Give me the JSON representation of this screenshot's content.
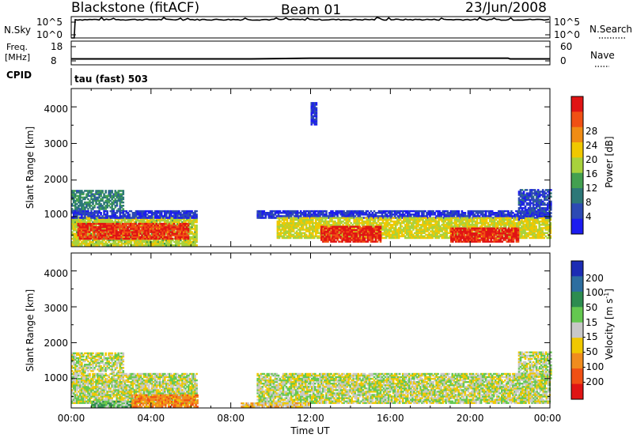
{
  "header": {
    "station": "Blackstone (fitACF)",
    "beam": "Beam 01",
    "date": "23/Jun/2008"
  },
  "summary_panels": {
    "nsky_label": "N.Sky",
    "nsky_ticks": [
      "10^5",
      "10^0"
    ],
    "nsearch_label": "N.Search",
    "nsearch_ticks": [
      "10^5",
      "10^0"
    ],
    "freq_label": "Freq.",
    "freq_unit": "[MHz]",
    "freq_ticks": [
      "18",
      "8"
    ],
    "nave_label": "Nave",
    "nave_ticks": [
      "60",
      "0"
    ],
    "cpid_label": "CPID",
    "cpid_value": "tau (fast) 503",
    "colors": {
      "trace": "#000000"
    }
  },
  "axes": {
    "x_ticks": [
      "00:00",
      "04:00",
      "08:00",
      "12:00",
      "16:00",
      "20:00",
      "00:00"
    ],
    "x_label": "Time UT",
    "y_ticks": [
      "1000",
      "2000",
      "3000",
      "4000"
    ],
    "y_label": "Slant Range [km]"
  },
  "colorbars": {
    "power": {
      "label": "Power [dB]",
      "ticks": [
        "4",
        "8",
        "12",
        "16",
        "20",
        "24",
        "28"
      ],
      "colors": [
        "#1c1cf0",
        "#2d4ab4",
        "#2d7878",
        "#43a050",
        "#a8d23c",
        "#f0c800",
        "#f08c14",
        "#f05014",
        "#e01414"
      ]
    },
    "velocity": {
      "label": "Velocity [m s",
      "label_sup": "-1",
      "label_end": "]",
      "ticks": [
        "200",
        "100",
        "50",
        "15",
        "-15",
        "-50",
        "-100",
        "-200"
      ],
      "colors": [
        "#1c2cb4",
        "#2d6ea0",
        "#2d8c50",
        "#64c850",
        "#c8c8c8",
        "#f0c800",
        "#f08c1e",
        "#f05014",
        "#e01414"
      ]
    }
  },
  "chart_data": [
    {
      "type": "line",
      "title": "N.Sky",
      "x_range_hours": [
        0,
        24
      ],
      "y_scale": "log",
      "ylim": [
        1,
        100000
      ],
      "approx_level": 20000,
      "series": [
        {
          "name": "N.Sky",
          "x": [
            0,
            0.15,
            0.2,
            12,
            24
          ],
          "y": [
            1,
            1,
            25000,
            20000,
            20000
          ]
        }
      ]
    },
    {
      "type": "line",
      "title": "Freq.",
      "x_range_hours": [
        0,
        24
      ],
      "ylim": [
        8,
        18
      ],
      "series": [
        {
          "name": "Freq.",
          "x": [
            0,
            6,
            9,
            12,
            15,
            18,
            21.9,
            22,
            24
          ],
          "y": [
            10.5,
            10.5,
            10.5,
            10.8,
            10.8,
            10.8,
            10.8,
            10.5,
            10.5
          ]
        }
      ]
    },
    {
      "type": "heatmap",
      "title": "Power [dB]",
      "x_range_hours": [
        0,
        24
      ],
      "ylim": [
        180,
        4500
      ],
      "value_range": [
        3,
        30
      ],
      "regions": [
        {
          "t": [
            0.0,
            2.6
          ],
          "r": [
            1100,
            1700
          ],
          "v": 11,
          "shape": "arc"
        },
        {
          "t": [
            0.0,
            6.3
          ],
          "r": [
            200,
            1000
          ],
          "v": 17
        },
        {
          "t": [
            0.3,
            5.9
          ],
          "r": [
            380,
            800
          ],
          "v": 27
        },
        {
          "t": [
            0.0,
            6.3
          ],
          "r": [
            950,
            1150
          ],
          "v": 6
        },
        {
          "t": [
            9.3,
            24.0
          ],
          "r": [
            950,
            1150
          ],
          "v": 6
        },
        {
          "t": [
            10.3,
            24.0
          ],
          "r": [
            400,
            950
          ],
          "v": 18
        },
        {
          "t": [
            12.5,
            15.5
          ],
          "r": [
            300,
            720
          ],
          "v": 28
        },
        {
          "t": [
            19.0,
            22.4
          ],
          "r": [
            300,
            700
          ],
          "v": 28
        },
        {
          "t": [
            22.4,
            24.0
          ],
          "r": [
            900,
            1750
          ],
          "v": 7,
          "shape": "arc"
        },
        {
          "t": [
            12.0,
            12.3
          ],
          "r": [
            3500,
            4100
          ],
          "v": 6
        }
      ]
    },
    {
      "type": "heatmap",
      "title": "Velocity",
      "x_range_hours": [
        0,
        24
      ],
      "ylim": [
        180,
        4500
      ],
      "value_range": [
        -250,
        250
      ],
      "regions": [
        {
          "t": [
            0.0,
            2.6
          ],
          "r": [
            1100,
            1700
          ],
          "v": 0,
          "shape": "arc"
        },
        {
          "t": [
            0.0,
            6.3
          ],
          "r": [
            300,
            1150
          ],
          "v": 0
        },
        {
          "t": [
            3.0,
            6.3
          ],
          "r": [
            200,
            520
          ],
          "v": -80
        },
        {
          "t": [
            1.0,
            3.0
          ],
          "r": [
            200,
            350
          ],
          "v": 40
        },
        {
          "t": [
            9.3,
            24.0
          ],
          "r": [
            300,
            1150
          ],
          "v": 0
        },
        {
          "t": [
            8.5,
            12.0
          ],
          "r": [
            200,
            320
          ],
          "v": -30
        },
        {
          "t": [
            22.4,
            24.0
          ],
          "r": [
            900,
            1750
          ],
          "v": 0,
          "shape": "arc"
        }
      ]
    }
  ]
}
